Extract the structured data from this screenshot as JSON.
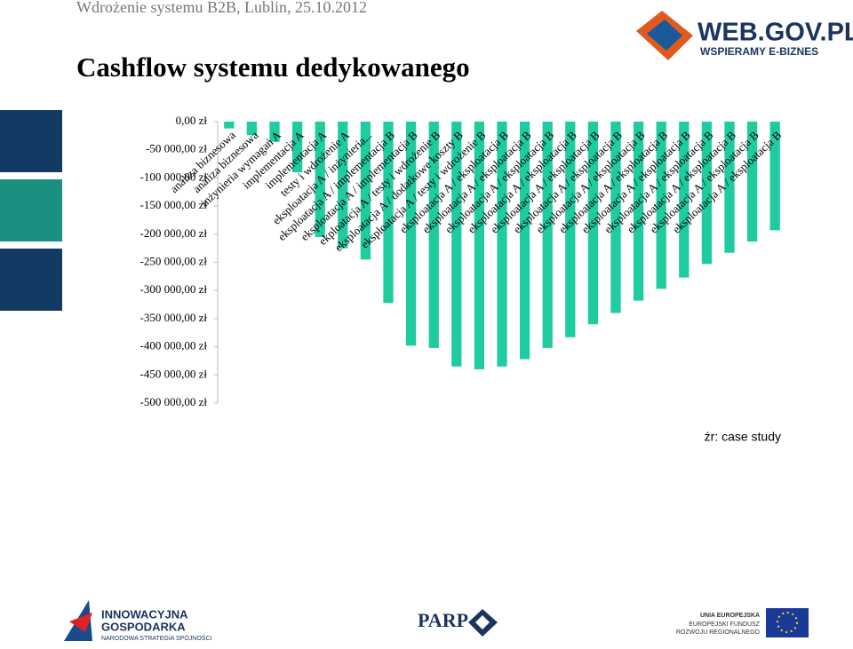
{
  "header": "Wdrożenie systemu B2B, Lublin, 25.10.2012",
  "logos": {
    "webgov": "WEB.GOV.PL",
    "webgov_tagline": "WSPIERAMY E-BIZNES",
    "ig_line1": "INNOWACYJNA",
    "ig_line2": "GOSPODARKA",
    "ig_line3": "NARODOWA STRATEGIA SPÓJNOŚCI",
    "parp": "PARP",
    "ue_line1": "UNIA EUROPEJSKA",
    "ue_line2": "EUROPEJSKI FUNDUSZ",
    "ue_line3": "ROZWOJU REGIONALNEGO"
  },
  "chart_data": {
    "type": "bar",
    "title": "Cashflow systemu dedykowanego",
    "source": "źr: case study",
    "categories": [
      "analiza biznesowa",
      "analiza biznesowa",
      "inżynieria wymagań A",
      "implementacja A",
      "implementacja A",
      "testy i wdrożenie A",
      "eksploatacja A / inżynieria...",
      "eksploatacja A / implementacja B",
      "eksploatacja A / implementacja B",
      "ekploatacja A / testy i wdrożenie B",
      "eksploatacja A / dodatkowe koszty B",
      "eksploatacja A / testy i wdrożenie B",
      "eksploatacja A / eksploatacja B",
      "eksploatacja A / eksploatacja B",
      "eksploatacja A / eksploatacja B",
      "eksploatacja A / eksploatacja B",
      "eksploatacja A / eksploatacja B",
      "eksploatacja A / eksploatacja B",
      "eksploatacja A / eksploatacja B",
      "eksploatacja A / eksploatacja B",
      "eksploatacja A / eksploatacja B",
      "eksploatacja A / eksploatacja B",
      "eksploatacja A / eksploatacja B",
      "eksploatacja A / eksploatacja B",
      "eksploatacja A / eksploatacja B"
    ],
    "values": [
      -12000,
      -24000,
      -36000,
      -90000,
      -205000,
      -225000,
      -245000,
      -322000,
      -398000,
      -402000,
      -435000,
      -440000,
      -435000,
      -422000,
      -402000,
      -383000,
      -360000,
      -340000,
      -318000,
      -297000,
      -277000,
      -253000,
      -233000,
      -213000,
      -193000
    ],
    "color": "#1fcc9f",
    "ylim": [
      -500000,
      0
    ],
    "yticks": [
      {
        "value": 0,
        "label": "0,00 zł"
      },
      {
        "value": -50000,
        "label": "-50 000,00 zł"
      },
      {
        "value": -100000,
        "label": "-100 000,00 zł"
      },
      {
        "value": -150000,
        "label": "-150 000,00 zł"
      },
      {
        "value": -200000,
        "label": "-200 000,00 zł"
      },
      {
        "value": -250000,
        "label": "-250 000,00 zł"
      },
      {
        "value": -300000,
        "label": "-300 000,00 zł"
      },
      {
        "value": -350000,
        "label": "-350 000,00 zł"
      },
      {
        "value": -400000,
        "label": "-400 000,00 zł"
      },
      {
        "value": -450000,
        "label": "-450 000,00 zł"
      },
      {
        "value": -500000,
        "label": "-500 000,00 zł"
      }
    ],
    "grid": false
  }
}
